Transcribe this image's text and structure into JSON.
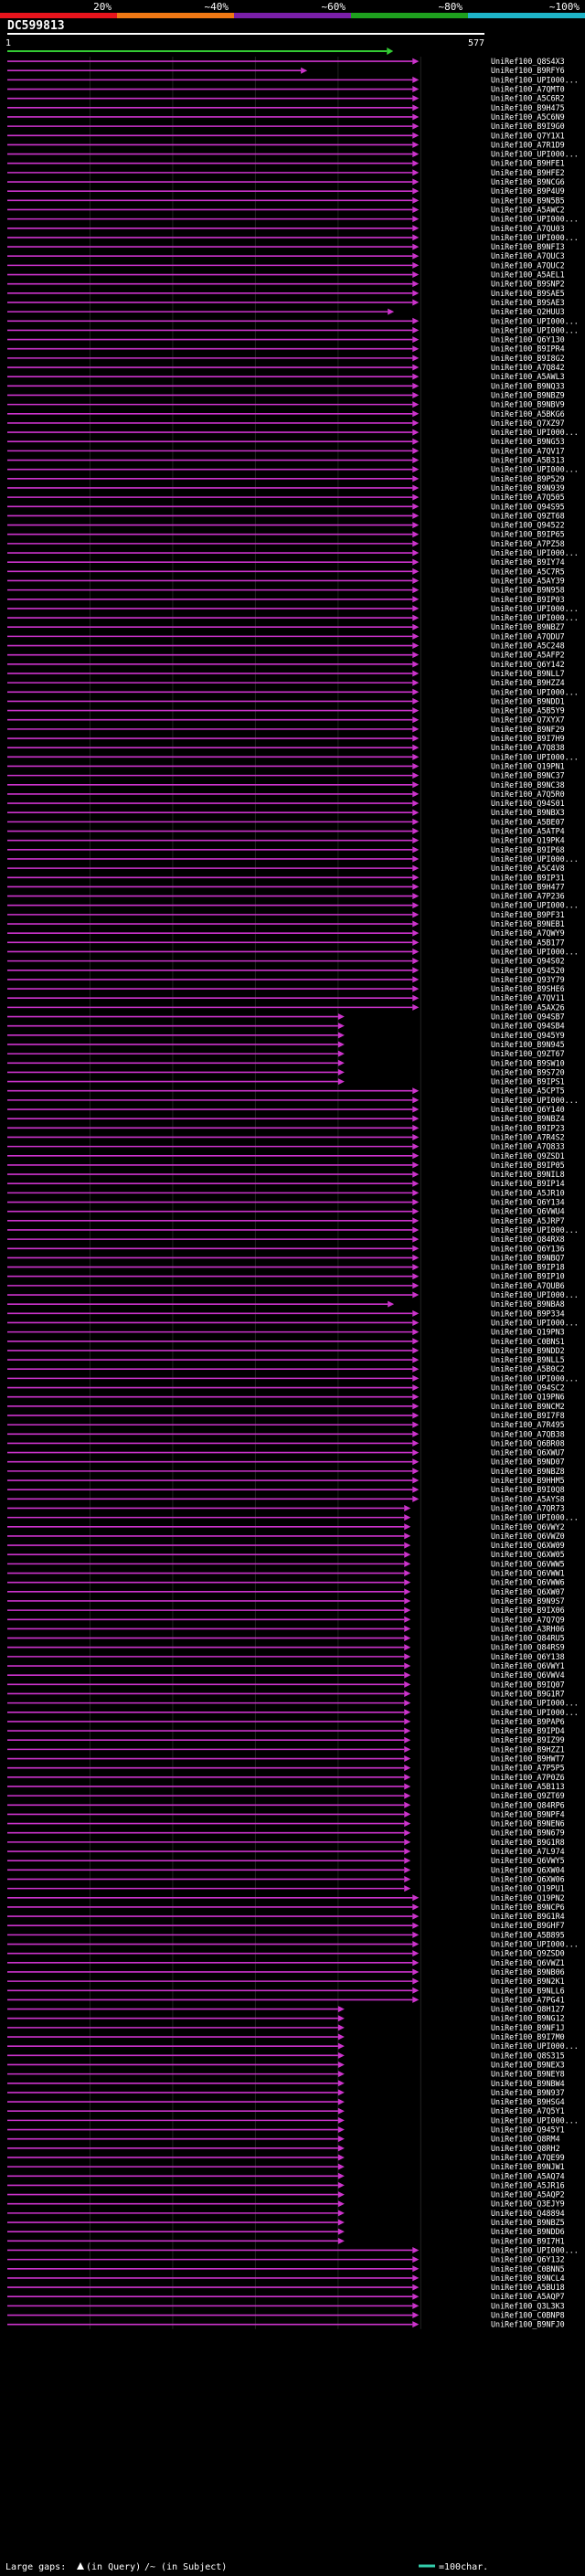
{
  "chart_data": {
    "type": "alignment-overview",
    "title": "DC599813",
    "scale_labels": [
      "20%",
      "~40%",
      "~60%",
      "~80%",
      "~100%"
    ],
    "scale_colors": [
      "#e8141c",
      "#f07814",
      "#7a1fa8",
      "#1ea01e",
      "#1eb4c8"
    ],
    "query_length": 577,
    "axis_start_label": "1",
    "axis_end_label": "577",
    "query_bar_end": 459,
    "hit_color": "#cc33cc",
    "query_color": "#33cc33",
    "hits": [
      {
        "name": "UniRef100_Q8S4X3",
        "end": 490
      },
      {
        "name": "UniRef100_B9RFY6",
        "end": 355
      },
      {
        "name": "UniRef100_UPI000...",
        "end": 490
      },
      {
        "name": "UniRef100_A7QMT0",
        "end": 490
      },
      {
        "name": "UniRef100_A5C6R2",
        "end": 490
      },
      {
        "name": "UniRef100_B9H475",
        "end": 490
      },
      {
        "name": "UniRef100_A5C6N9",
        "end": 490
      },
      {
        "name": "UniRef100_B9I9G0",
        "end": 490
      },
      {
        "name": "UniRef100_Q7Y1X1",
        "end": 490
      },
      {
        "name": "UniRef100_A7R1D9",
        "end": 490
      },
      {
        "name": "UniRef100_UPI000...",
        "end": 490
      },
      {
        "name": "UniRef100_B9HFE1",
        "end": 490
      },
      {
        "name": "UniRef100_B9HFE2",
        "end": 490
      },
      {
        "name": "UniRef100_B9NCG6",
        "end": 490
      },
      {
        "name": "UniRef100_B9P4U9",
        "end": 490
      },
      {
        "name": "UniRef100_B9N5B5",
        "end": 490
      },
      {
        "name": "UniRef100_A5AWC2",
        "end": 490
      },
      {
        "name": "UniRef100_UPI000...",
        "end": 490
      },
      {
        "name": "UniRef100_A7QU03",
        "end": 490
      },
      {
        "name": "UniRef100_UPI000...",
        "end": 490
      },
      {
        "name": "UniRef100_B9NFI3",
        "end": 490
      },
      {
        "name": "UniRef100_A7QUC3",
        "end": 490
      },
      {
        "name": "UniRef100_A7QUC2",
        "end": 490
      },
      {
        "name": "UniRef100_A5AEL1",
        "end": 490
      },
      {
        "name": "UniRef100_B9SNP2",
        "end": 490
      },
      {
        "name": "UniRef100_B9SAE5",
        "end": 490
      },
      {
        "name": "UniRef100_B9SAE3",
        "end": 490
      },
      {
        "name": "UniRef100_Q2HUU3",
        "end": 460
      },
      {
        "name": "UniRef100_UPI000...",
        "end": 490
      },
      {
        "name": "UniRef100_UPI000...",
        "end": 490
      },
      {
        "name": "UniRef100_Q6Y130",
        "end": 490
      },
      {
        "name": "UniRef100_B9IPR4",
        "end": 490
      },
      {
        "name": "UniRef100_B9I8G2",
        "end": 490
      },
      {
        "name": "UniRef100_A7Q842",
        "end": 490
      },
      {
        "name": "UniRef100_A5AWL3",
        "end": 490
      },
      {
        "name": "UniRef100_B9NQ33",
        "end": 490
      },
      {
        "name": "UniRef100_B9NBZ9",
        "end": 490
      },
      {
        "name": "UniRef100_B9NBV9",
        "end": 490
      },
      {
        "name": "UniRef100_A5BKG6",
        "end": 490
      },
      {
        "name": "UniRef100_Q7XZ97",
        "end": 490
      },
      {
        "name": "UniRef100_UPI000...",
        "end": 490
      },
      {
        "name": "UniRef100_B9NG53",
        "end": 490
      },
      {
        "name": "UniRef100_A7QV17",
        "end": 490
      },
      {
        "name": "UniRef100_A5B313",
        "end": 490
      },
      {
        "name": "UniRef100_UPI000...",
        "end": 490
      },
      {
        "name": "UniRef100_B9P529",
        "end": 490
      },
      {
        "name": "UniRef100_B9N939",
        "end": 490
      },
      {
        "name": "UniRef100_A7Q505",
        "end": 490
      },
      {
        "name": "UniRef100_Q94S95",
        "end": 490
      },
      {
        "name": "UniRef100_Q9ZT68",
        "end": 490
      },
      {
        "name": "UniRef100_Q94522",
        "end": 490
      },
      {
        "name": "UniRef100_B9IP65",
        "end": 490
      },
      {
        "name": "UniRef100_A7PZ58",
        "end": 490
      },
      {
        "name": "UniRef100_UPI000...",
        "end": 490
      },
      {
        "name": "UniRef100_B9IY74",
        "end": 490
      },
      {
        "name": "UniRef100_A5C7R5",
        "end": 490
      },
      {
        "name": "UniRef100_A5AY39",
        "end": 490
      },
      {
        "name": "UniRef100_B9N958",
        "end": 490
      },
      {
        "name": "UniRef100_B9IP03",
        "end": 490
      },
      {
        "name": "UniRef100_UPI000...",
        "end": 490
      },
      {
        "name": "UniRef100_UPI000...",
        "end": 490
      },
      {
        "name": "UniRef100_B9NBZ7",
        "end": 490
      },
      {
        "name": "UniRef100_A7QDU7",
        "end": 490
      },
      {
        "name": "UniRef100_A5C248",
        "end": 490
      },
      {
        "name": "UniRef100_A5AFP2",
        "end": 490
      },
      {
        "name": "UniRef100_Q6Y142",
        "end": 490
      },
      {
        "name": "UniRef100_B9NLL7",
        "end": 490
      },
      {
        "name": "UniRef100_B9HZZ4",
        "end": 490
      },
      {
        "name": "UniRef100_UPI000...",
        "end": 490
      },
      {
        "name": "UniRef100_B9NDD1",
        "end": 490
      },
      {
        "name": "UniRef100_A5B5Y9",
        "end": 490
      },
      {
        "name": "UniRef100_Q7XYX7",
        "end": 490
      },
      {
        "name": "UniRef100_B9NF29",
        "end": 490
      },
      {
        "name": "UniRef100_B9I7H9",
        "end": 490
      },
      {
        "name": "UniRef100_A7Q838",
        "end": 490
      },
      {
        "name": "UniRef100_UPI000...",
        "end": 490
      },
      {
        "name": "UniRef100_Q19PN1",
        "end": 490
      },
      {
        "name": "UniRef100_B9NC37",
        "end": 490
      },
      {
        "name": "UniRef100_B9NC38",
        "end": 490
      },
      {
        "name": "UniRef100_A7Q5R0",
        "end": 490
      },
      {
        "name": "UniRef100_Q94S01",
        "end": 490
      },
      {
        "name": "UniRef100_B9NBX3",
        "end": 490
      },
      {
        "name": "UniRef100_A5BE07",
        "end": 490
      },
      {
        "name": "UniRef100_A5ATP4",
        "end": 490
      },
      {
        "name": "UniRef100_Q19PK4",
        "end": 490
      },
      {
        "name": "UniRef100_B9IP68",
        "end": 490
      },
      {
        "name": "UniRef100_UPI000...",
        "end": 490
      },
      {
        "name": "UniRef100_A5C4V8",
        "end": 490
      },
      {
        "name": "UniRef100_B9IP31",
        "end": 490
      },
      {
        "name": "UniRef100_B9H477",
        "end": 490
      },
      {
        "name": "UniRef100_A7P236",
        "end": 490
      },
      {
        "name": "UniRef100_UPI000...",
        "end": 490
      },
      {
        "name": "UniRef100_B9PF31",
        "end": 490
      },
      {
        "name": "UniRef100_B9NEB1",
        "end": 490
      },
      {
        "name": "UniRef100_A7QWY9",
        "end": 490
      },
      {
        "name": "UniRef100_A5B177",
        "end": 490
      },
      {
        "name": "UniRef100_UPI000...",
        "end": 490
      },
      {
        "name": "UniRef100_Q94S02",
        "end": 490
      },
      {
        "name": "UniRef100_Q94520",
        "end": 490
      },
      {
        "name": "UniRef100_Q93Y79",
        "end": 490
      },
      {
        "name": "UniRef100_B9SHE6",
        "end": 490
      },
      {
        "name": "UniRef100_A7QV11",
        "end": 490
      },
      {
        "name": "UniRef100_A5AX26",
        "end": 490
      },
      {
        "name": "UniRef100_Q94SB7",
        "end": 400
      },
      {
        "name": "UniRef100_Q94SB4",
        "end": 400
      },
      {
        "name": "UniRef100_Q945Y9",
        "end": 400
      },
      {
        "name": "UniRef100_B9N945",
        "end": 400
      },
      {
        "name": "UniRef100_Q9ZT67",
        "end": 400
      },
      {
        "name": "UniRef100_B9SW10",
        "end": 400
      },
      {
        "name": "UniRef100_B9S720",
        "end": 400
      },
      {
        "name": "UniRef100_B9IPS1",
        "end": 400
      },
      {
        "name": "UniRef100_A5CPT5",
        "end": 490
      },
      {
        "name": "UniRef100_UPI000...",
        "end": 490
      },
      {
        "name": "UniRef100_Q6Y140",
        "end": 490
      },
      {
        "name": "UniRef100_B9NBZ4",
        "end": 490
      },
      {
        "name": "UniRef100_B9IP23",
        "end": 490
      },
      {
        "name": "UniRef100_A7R4S2",
        "end": 490
      },
      {
        "name": "UniRef100_A7Q833",
        "end": 490
      },
      {
        "name": "UniRef100_Q9ZSD1",
        "end": 490
      },
      {
        "name": "UniRef100_B9IP05",
        "end": 490
      },
      {
        "name": "UniRef100_B9NIL8",
        "end": 490
      },
      {
        "name": "UniRef100_B9IP14",
        "end": 490
      },
      {
        "name": "UniRef100_A5JR10",
        "end": 490
      },
      {
        "name": "UniRef100_Q6Y134",
        "end": 490
      },
      {
        "name": "UniRef100_Q6VWU4",
        "end": 490
      },
      {
        "name": "UniRef100_A5JRP7",
        "end": 490
      },
      {
        "name": "UniRef100_UPI000...",
        "end": 490
      },
      {
        "name": "UniRef100_Q84RX8",
        "end": 490
      },
      {
        "name": "UniRef100_Q6Y136",
        "end": 490
      },
      {
        "name": "UniRef100_B9NBQ7",
        "end": 490
      },
      {
        "name": "UniRef100_B9IP18",
        "end": 490
      },
      {
        "name": "UniRef100_B9IP10",
        "end": 490
      },
      {
        "name": "UniRef100_A7QUB6",
        "end": 490
      },
      {
        "name": "UniRef100_UPI000...",
        "end": 490
      },
      {
        "name": "UniRef100_B9NBA8",
        "end": 460
      },
      {
        "name": "UniRef100_B9P334",
        "end": 490
      },
      {
        "name": "UniRef100_UPI000...",
        "end": 490
      },
      {
        "name": "UniRef100_Q19PN3",
        "end": 490
      },
      {
        "name": "UniRef100_C0BNS1",
        "end": 490
      },
      {
        "name": "UniRef100_B9NDD2",
        "end": 490
      },
      {
        "name": "UniRef100_B9NLL5",
        "end": 490
      },
      {
        "name": "UniRef100_A5B0C2",
        "end": 490
      },
      {
        "name": "UniRef100_UPI000...",
        "end": 490
      },
      {
        "name": "UniRef100_Q94SC2",
        "end": 490
      },
      {
        "name": "UniRef100_Q19PN6",
        "end": 490
      },
      {
        "name": "UniRef100_B9NCM2",
        "end": 490
      },
      {
        "name": "UniRef100_B9I7F8",
        "end": 490
      },
      {
        "name": "UniRef100_A7R495",
        "end": 490
      },
      {
        "name": "UniRef100_A7QB38",
        "end": 490
      },
      {
        "name": "UniRef100_Q6BR08",
        "end": 490
      },
      {
        "name": "UniRef100_Q6XWU7",
        "end": 490
      },
      {
        "name": "UniRef100_B9ND07",
        "end": 490
      },
      {
        "name": "UniRef100_B9NBZ8",
        "end": 490
      },
      {
        "name": "UniRef100_B9HHM5",
        "end": 490
      },
      {
        "name": "UniRef100_B9I0Q8",
        "end": 490
      },
      {
        "name": "UniRef100_A5AYS8",
        "end": 490
      },
      {
        "name": "UniRef100_A7QR73",
        "end": 480
      },
      {
        "name": "UniRef100_UPI000...",
        "end": 480
      },
      {
        "name": "UniRef100_Q6VWY2",
        "end": 480
      },
      {
        "name": "UniRef100_Q6VWZ0",
        "end": 480
      },
      {
        "name": "UniRef100_Q6XW09",
        "end": 480
      },
      {
        "name": "UniRef100_Q6XW05",
        "end": 480
      },
      {
        "name": "UniRef100_Q6VWW5",
        "end": 480
      },
      {
        "name": "UniRef100_Q6VWW1",
        "end": 480
      },
      {
        "name": "UniRef100_Q6VWW6",
        "end": 480
      },
      {
        "name": "UniRef100_Q6XW07",
        "end": 480
      },
      {
        "name": "UniRef100_B9N9S7",
        "end": 480
      },
      {
        "name": "UniRef100_B9IX06",
        "end": 480
      },
      {
        "name": "UniRef100_A7Q7Q9",
        "end": 480
      },
      {
        "name": "UniRef100_A3RH06",
        "end": 480
      },
      {
        "name": "UniRef100_Q84RU5",
        "end": 480
      },
      {
        "name": "UniRef100_Q84RS9",
        "end": 480
      },
      {
        "name": "UniRef100_Q6Y138",
        "end": 480
      },
      {
        "name": "UniRef100_Q6VWY1",
        "end": 480
      },
      {
        "name": "UniRef100_Q6VWV4",
        "end": 480
      },
      {
        "name": "UniRef100_B9IQ07",
        "end": 480
      },
      {
        "name": "UniRef100_B9G1R7",
        "end": 480
      },
      {
        "name": "UniRef100_UPI000...",
        "end": 480
      },
      {
        "name": "UniRef100_UPI000...",
        "end": 480
      },
      {
        "name": "UniRef100_B9PAP6",
        "end": 480
      },
      {
        "name": "UniRef100_B9IPD4",
        "end": 480
      },
      {
        "name": "UniRef100_B9IZ99",
        "end": 480
      },
      {
        "name": "UniRef100_B9HZZ1",
        "end": 480
      },
      {
        "name": "UniRef100_B9HWT7",
        "end": 480
      },
      {
        "name": "UniRef100_A7P5P5",
        "end": 480
      },
      {
        "name": "UniRef100_A7P0Z6",
        "end": 480
      },
      {
        "name": "UniRef100_A5B113",
        "end": 480
      },
      {
        "name": "UniRef100_Q9ZT69",
        "end": 480
      },
      {
        "name": "UniRef100_Q84RP6",
        "end": 480
      },
      {
        "name": "UniRef100_B9NPF4",
        "end": 480
      },
      {
        "name": "UniRef100_B9NEN6",
        "end": 480
      },
      {
        "name": "UniRef100_B9N679",
        "end": 480
      },
      {
        "name": "UniRef100_B9G1R8",
        "end": 480
      },
      {
        "name": "UniRef100_A7L974",
        "end": 480
      },
      {
        "name": "UniRef100_Q6VWY5",
        "end": 480
      },
      {
        "name": "UniRef100_Q6XW04",
        "end": 480
      },
      {
        "name": "UniRef100_Q6XW06",
        "end": 480
      },
      {
        "name": "UniRef100_Q19PU1",
        "end": 480
      },
      {
        "name": "UniRef100_Q19PN2",
        "end": 490
      },
      {
        "name": "UniRef100_B9NCP6",
        "end": 490
      },
      {
        "name": "UniRef100_B9G1R4",
        "end": 490
      },
      {
        "name": "UniRef100_B9GHF7",
        "end": 490
      },
      {
        "name": "UniRef100_A5B895",
        "end": 490
      },
      {
        "name": "UniRef100_UPI000...",
        "end": 490
      },
      {
        "name": "UniRef100_Q9ZSD0",
        "end": 490
      },
      {
        "name": "UniRef100_Q6VWZ1",
        "end": 490
      },
      {
        "name": "UniRef100_B9NB06",
        "end": 490
      },
      {
        "name": "UniRef100_B9N2K1",
        "end": 490
      },
      {
        "name": "UniRef100_B9NLL6",
        "end": 490
      },
      {
        "name": "UniRef100_A7PG41",
        "end": 490
      },
      {
        "name": "UniRef100_Q8H127",
        "end": 400
      },
      {
        "name": "UniRef100_B9NG12",
        "end": 400
      },
      {
        "name": "UniRef100_B9NF1J",
        "end": 400
      },
      {
        "name": "UniRef100_B9I7M0",
        "end": 400
      },
      {
        "name": "UniRef100_UPI000...",
        "end": 400
      },
      {
        "name": "UniRef100_Q8S315",
        "end": 400
      },
      {
        "name": "UniRef100_B9NEX3",
        "end": 400
      },
      {
        "name": "UniRef100_B9NEY8",
        "end": 400
      },
      {
        "name": "UniRef100_B9NBW4",
        "end": 400
      },
      {
        "name": "UniRef100_B9N937",
        "end": 400
      },
      {
        "name": "UniRef100_B9HSG4",
        "end": 400
      },
      {
        "name": "UniRef100_A7Q5Y1",
        "end": 400
      },
      {
        "name": "UniRef100_UPI000...",
        "end": 400
      },
      {
        "name": "UniRef100_Q945Y1",
        "end": 400
      },
      {
        "name": "UniRef100_Q8RM4",
        "end": 400
      },
      {
        "name": "UniRef100_Q8RH2",
        "end": 400
      },
      {
        "name": "UniRef100_A7QE99",
        "end": 400
      },
      {
        "name": "UniRef100_B9NJW1",
        "end": 400
      },
      {
        "name": "UniRef100_A5AQ74",
        "end": 400
      },
      {
        "name": "UniRef100_A5JR16",
        "end": 400
      },
      {
        "name": "UniRef100_A5AQP2",
        "end": 400
      },
      {
        "name": "UniRef100_Q3EJY9",
        "end": 400
      },
      {
        "name": "UniRef100_Q48894",
        "end": 400
      },
      {
        "name": "UniRef100_B9NBZ5",
        "end": 400
      },
      {
        "name": "UniRef100_B9NDD6",
        "end": 400
      },
      {
        "name": "UniRef100_B9I7H1",
        "end": 400
      },
      {
        "name": "UniRef100_UPI000...",
        "end": 490
      },
      {
        "name": "UniRef100_Q6Y132",
        "end": 490
      },
      {
        "name": "UniRef100_C0BNN5",
        "end": 490
      },
      {
        "name": "UniRef100_B9NCL4",
        "end": 490
      },
      {
        "name": "UniRef100_A5BU18",
        "end": 490
      },
      {
        "name": "UniRef100_A5AQP7",
        "end": 490
      },
      {
        "name": "UniRef100_Q3L3K3",
        "end": 490
      },
      {
        "name": "UniRef100_C0BNP8",
        "end": 490
      },
      {
        "name": "UniRef100_B9NFJ0",
        "end": 490
      }
    ],
    "legend": {
      "large_gaps": "Large gaps:",
      "in_query": "(in Query)",
      "in_subject": "/~ (in Subject)",
      "scale": "=100char."
    }
  }
}
